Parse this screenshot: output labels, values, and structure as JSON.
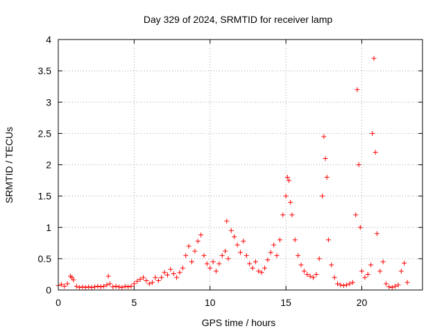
{
  "chart_data": {
    "type": "scatter",
    "title": "Day 329 of 2024, SRMTID for receiver lamp",
    "xlabel": "GPS time / hours",
    "ylabel": "SRMTID / TECUs",
    "xlim": [
      0,
      24
    ],
    "ylim": [
      0,
      4
    ],
    "xticks": [
      0,
      5,
      10,
      15,
      20
    ],
    "yticks": [
      0,
      0.5,
      1,
      1.5,
      2,
      2.5,
      3,
      3.5,
      4
    ],
    "grid": true,
    "marker": "+",
    "color": "#ff0000",
    "series": [
      {
        "name": "SRMTID",
        "x": [
          0.0,
          0.2,
          0.4,
          0.6,
          0.8,
          0.9,
          1.0,
          1.2,
          1.4,
          1.6,
          1.8,
          2.0,
          2.2,
          2.4,
          2.6,
          2.8,
          3.0,
          3.2,
          3.3,
          3.4,
          3.6,
          3.8,
          4.0,
          4.2,
          4.4,
          4.6,
          4.8,
          5.0,
          5.2,
          5.4,
          5.6,
          5.8,
          6.0,
          6.2,
          6.4,
          6.6,
          6.8,
          7.0,
          7.2,
          7.4,
          7.6,
          7.8,
          8.0,
          8.2,
          8.4,
          8.6,
          8.8,
          9.0,
          9.2,
          9.4,
          9.6,
          9.8,
          10.0,
          10.2,
          10.4,
          10.6,
          10.8,
          11.0,
          11.1,
          11.2,
          11.4,
          11.6,
          11.8,
          12.0,
          12.2,
          12.4,
          12.6,
          12.8,
          13.0,
          13.2,
          13.4,
          13.6,
          13.8,
          14.0,
          14.2,
          14.4,
          14.6,
          14.8,
          15.0,
          15.1,
          15.2,
          15.3,
          15.4,
          15.6,
          15.8,
          16.0,
          16.2,
          16.4,
          16.6,
          16.8,
          17.0,
          17.2,
          17.4,
          17.5,
          17.6,
          17.7,
          17.8,
          18.0,
          18.2,
          18.4,
          18.6,
          18.8,
          19.0,
          19.2,
          19.4,
          19.6,
          19.7,
          19.8,
          19.9,
          20.0,
          20.2,
          20.4,
          20.6,
          20.7,
          20.8,
          20.9,
          21.0,
          21.2,
          21.4,
          21.6,
          21.8,
          22.0,
          22.2,
          22.4,
          22.6,
          22.8,
          23.0
        ],
        "values": [
          0.07,
          0.09,
          0.06,
          0.1,
          0.22,
          0.2,
          0.16,
          0.06,
          0.04,
          0.05,
          0.04,
          0.05,
          0.04,
          0.05,
          0.06,
          0.05,
          0.06,
          0.08,
          0.22,
          0.1,
          0.05,
          0.06,
          0.05,
          0.04,
          0.06,
          0.05,
          0.06,
          0.1,
          0.14,
          0.17,
          0.2,
          0.15,
          0.1,
          0.12,
          0.2,
          0.15,
          0.2,
          0.28,
          0.24,
          0.33,
          0.26,
          0.2,
          0.28,
          0.35,
          0.55,
          0.7,
          0.45,
          0.62,
          0.78,
          0.88,
          0.55,
          0.42,
          0.35,
          0.45,
          0.3,
          0.42,
          0.55,
          0.62,
          1.1,
          0.5,
          0.95,
          0.85,
          0.72,
          0.6,
          0.78,
          0.55,
          0.42,
          0.35,
          0.45,
          0.3,
          0.28,
          0.35,
          0.48,
          0.6,
          0.72,
          0.55,
          0.8,
          1.2,
          1.5,
          1.8,
          1.75,
          1.4,
          1.2,
          0.8,
          0.55,
          0.4,
          0.3,
          0.25,
          0.22,
          0.2,
          0.25,
          0.5,
          1.5,
          2.45,
          2.1,
          1.8,
          0.8,
          0.4,
          0.2,
          0.1,
          0.08,
          0.07,
          0.08,
          0.1,
          0.12,
          1.2,
          3.2,
          2.0,
          1.0,
          0.3,
          0.2,
          0.25,
          0.4,
          2.5,
          3.7,
          2.2,
          0.9,
          0.3,
          0.45,
          0.1,
          0.05,
          0.04,
          0.06,
          0.08,
          0.3,
          0.43,
          0.12
        ]
      }
    ]
  }
}
